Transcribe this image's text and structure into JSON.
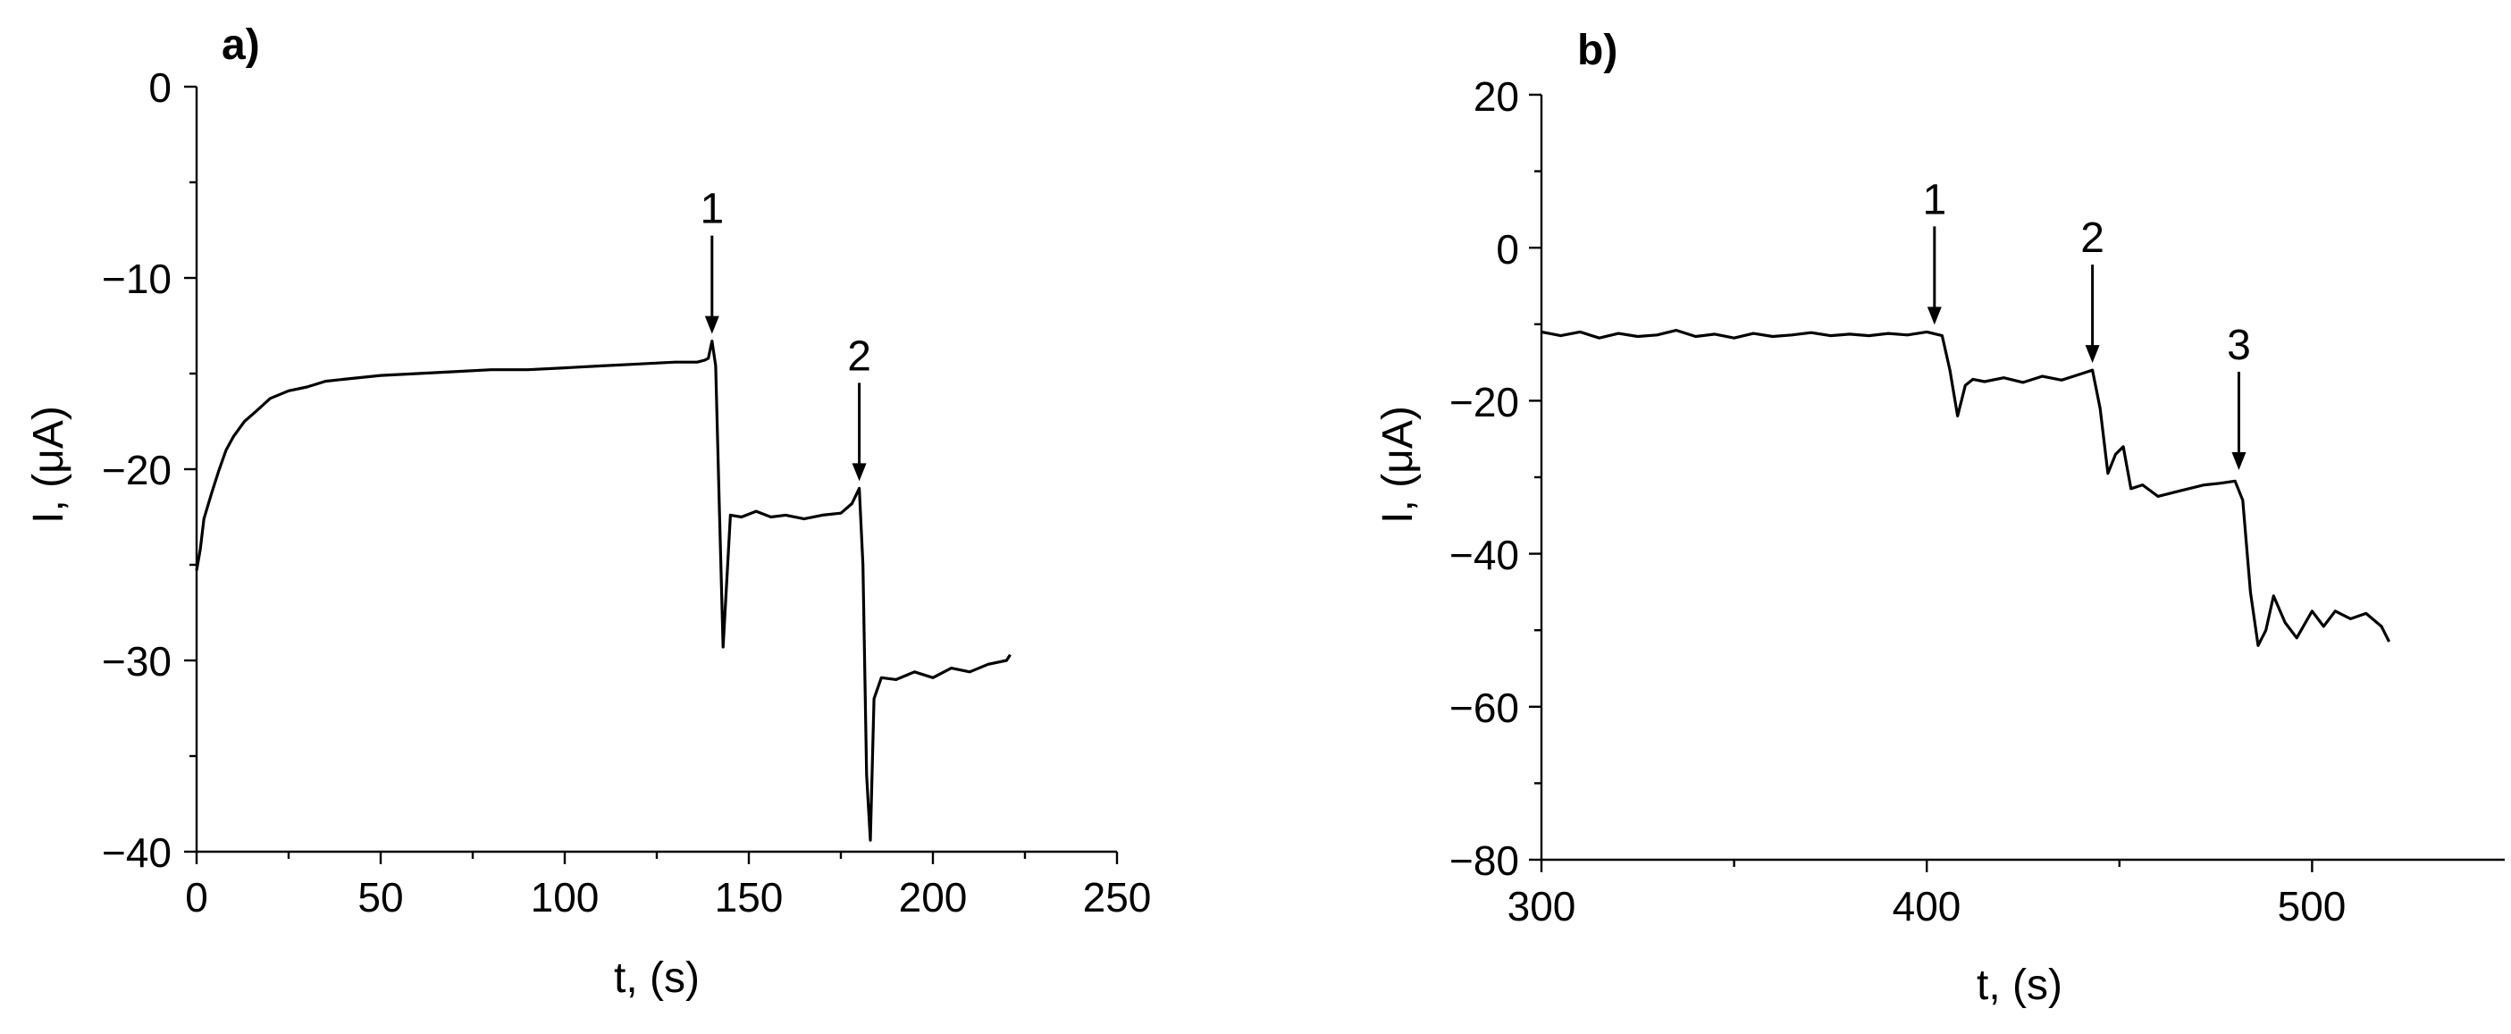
{
  "chart_data": [
    {
      "type": "line",
      "panel_label": "a)",
      "xlabel": "t, (s)",
      "ylabel": "I, (μA)",
      "xlim": [
        0,
        250
      ],
      "ylim": [
        -40,
        0
      ],
      "xticks": [
        0,
        50,
        100,
        150,
        200,
        250
      ],
      "xtick_labels": [
        "0",
        "50",
        "100",
        "150",
        "200",
        "250"
      ],
      "yticks": [
        0,
        -10,
        -20,
        -30,
        -40
      ],
      "ytick_labels": [
        "0",
        "−10",
        "−20",
        "−30",
        "−40"
      ],
      "grid": false,
      "annotations": [
        {
          "text": "1",
          "x": 140,
          "y": -13.3
        },
        {
          "text": "2",
          "x": 180,
          "y": -21.0
        }
      ],
      "series": [
        {
          "x": [
            0,
            1,
            2,
            4,
            6,
            8,
            10,
            13,
            16,
            20,
            25,
            30,
            35,
            40,
            50,
            60,
            70,
            80,
            90,
            100,
            110,
            120,
            130,
            136,
            138,
            139,
            140,
            141,
            142,
            143,
            145,
            148,
            152,
            156,
            160,
            165,
            170,
            175,
            178,
            180,
            181,
            182,
            183,
            184,
            186,
            190,
            195,
            200,
            205,
            210,
            215,
            220,
            221
          ],
          "y": [
            -25.3,
            -24.2,
            -22.6,
            -21.3,
            -20.1,
            -19.0,
            -18.3,
            -17.5,
            -17.0,
            -16.3,
            -15.9,
            -15.7,
            -15.4,
            -15.3,
            -15.1,
            -15.0,
            -14.9,
            -14.8,
            -14.8,
            -14.7,
            -14.6,
            -14.5,
            -14.4,
            -14.4,
            -14.3,
            -14.2,
            -13.3,
            -14.6,
            -22.0,
            -29.3,
            -22.4,
            -22.5,
            -22.2,
            -22.5,
            -22.4,
            -22.6,
            -22.4,
            -22.3,
            -21.8,
            -21.0,
            -25.0,
            -36.0,
            -39.4,
            -32.0,
            -30.9,
            -31.0,
            -30.6,
            -30.9,
            -30.4,
            -30.6,
            -30.2,
            -30.0,
            -29.7
          ]
        }
      ]
    },
    {
      "type": "line",
      "panel_label": "b)",
      "xlabel": "t, (s)",
      "ylabel": "I, (μA)",
      "xlim": [
        300,
        550
      ],
      "ylim": [
        -80,
        20
      ],
      "xticks": [
        300,
        400,
        500
      ],
      "xtick_labels": [
        "300",
        "400",
        "500"
      ],
      "yticks": [
        20,
        0,
        -20,
        -40,
        -60,
        -80
      ],
      "ytick_labels": [
        "20",
        "0",
        "−20",
        "−40",
        "−60",
        "−80"
      ],
      "grid": false,
      "annotations": [
        {
          "text": "1",
          "x": 402,
          "y": -11
        },
        {
          "text": "2",
          "x": 443,
          "y": -16
        },
        {
          "text": "3",
          "x": 481,
          "y": -30
        }
      ],
      "series": [
        {
          "x": [
            300,
            305,
            310,
            315,
            320,
            325,
            330,
            335,
            340,
            345,
            350,
            355,
            360,
            365,
            370,
            375,
            380,
            385,
            390,
            395,
            400,
            404,
            406,
            408,
            410,
            412,
            415,
            420,
            425,
            430,
            435,
            440,
            443,
            445,
            447,
            449,
            451,
            453,
            456,
            460,
            464,
            468,
            472,
            476,
            480,
            482,
            484,
            486,
            488,
            490,
            493,
            496,
            500,
            503,
            506,
            510,
            514,
            518,
            520
          ],
          "y": [
            -11,
            -11.5,
            -11,
            -11.8,
            -11.2,
            -11.6,
            -11.4,
            -10.8,
            -11.6,
            -11.3,
            -11.8,
            -11.2,
            -11.6,
            -11.4,
            -11.1,
            -11.5,
            -11.3,
            -11.5,
            -11.2,
            -11.4,
            -11.0,
            -11.5,
            -16,
            -22,
            -18,
            -17.2,
            -17.5,
            -17.0,
            -17.6,
            -16.8,
            -17.3,
            -16.5,
            -16.0,
            -21,
            -29.5,
            -27,
            -26,
            -31.5,
            -31,
            -32.5,
            -32,
            -31.5,
            -31,
            -30.8,
            -30.5,
            -33,
            -45,
            -52,
            -50,
            -45.5,
            -49,
            -51,
            -47.5,
            -49.5,
            -47.5,
            -48.5,
            -47.8,
            -49.5,
            -51.5
          ]
        }
      ]
    }
  ]
}
